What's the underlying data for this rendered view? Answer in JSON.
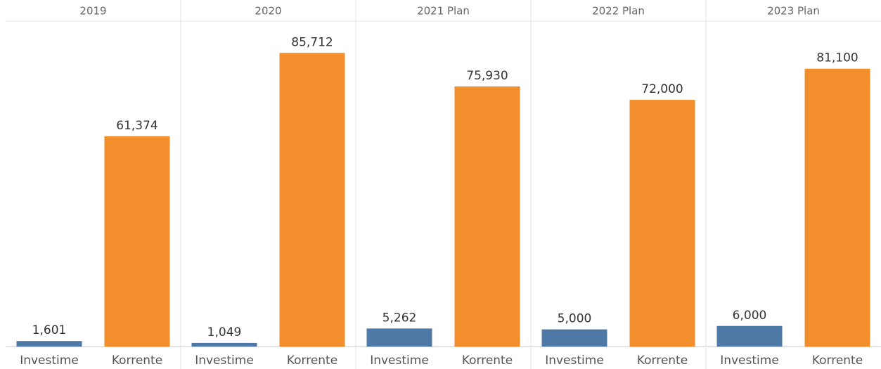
{
  "chart_data": {
    "type": "bar",
    "ylim": [
      0,
      95000
    ],
    "colors": [
      "#4e79a7",
      "#f28e2b"
    ],
    "panels": [
      {
        "title": "2019",
        "categories": [
          "Investime",
          "Korrente"
        ],
        "values": [
          1601,
          61374
        ],
        "value_labels": [
          "1,601",
          "61,374"
        ]
      },
      {
        "title": "2020",
        "categories": [
          "Investime",
          "Korrente"
        ],
        "values": [
          1049,
          85712
        ],
        "value_labels": [
          "1,049",
          "85,712"
        ]
      },
      {
        "title": "2021 Plan",
        "categories": [
          "Investime",
          "Korrente"
        ],
        "values": [
          5262,
          75930
        ],
        "value_labels": [
          "5,262",
          "75,930"
        ]
      },
      {
        "title": "2022 Plan",
        "categories": [
          "Investime",
          "Korrente"
        ],
        "values": [
          5000,
          72000
        ],
        "value_labels": [
          "5,000",
          "72,000"
        ]
      },
      {
        "title": "2023 Plan",
        "categories": [
          "Investime",
          "Korrente"
        ],
        "values": [
          6000,
          81100
        ],
        "value_labels": [
          "6,000",
          "81,100"
        ]
      }
    ]
  }
}
